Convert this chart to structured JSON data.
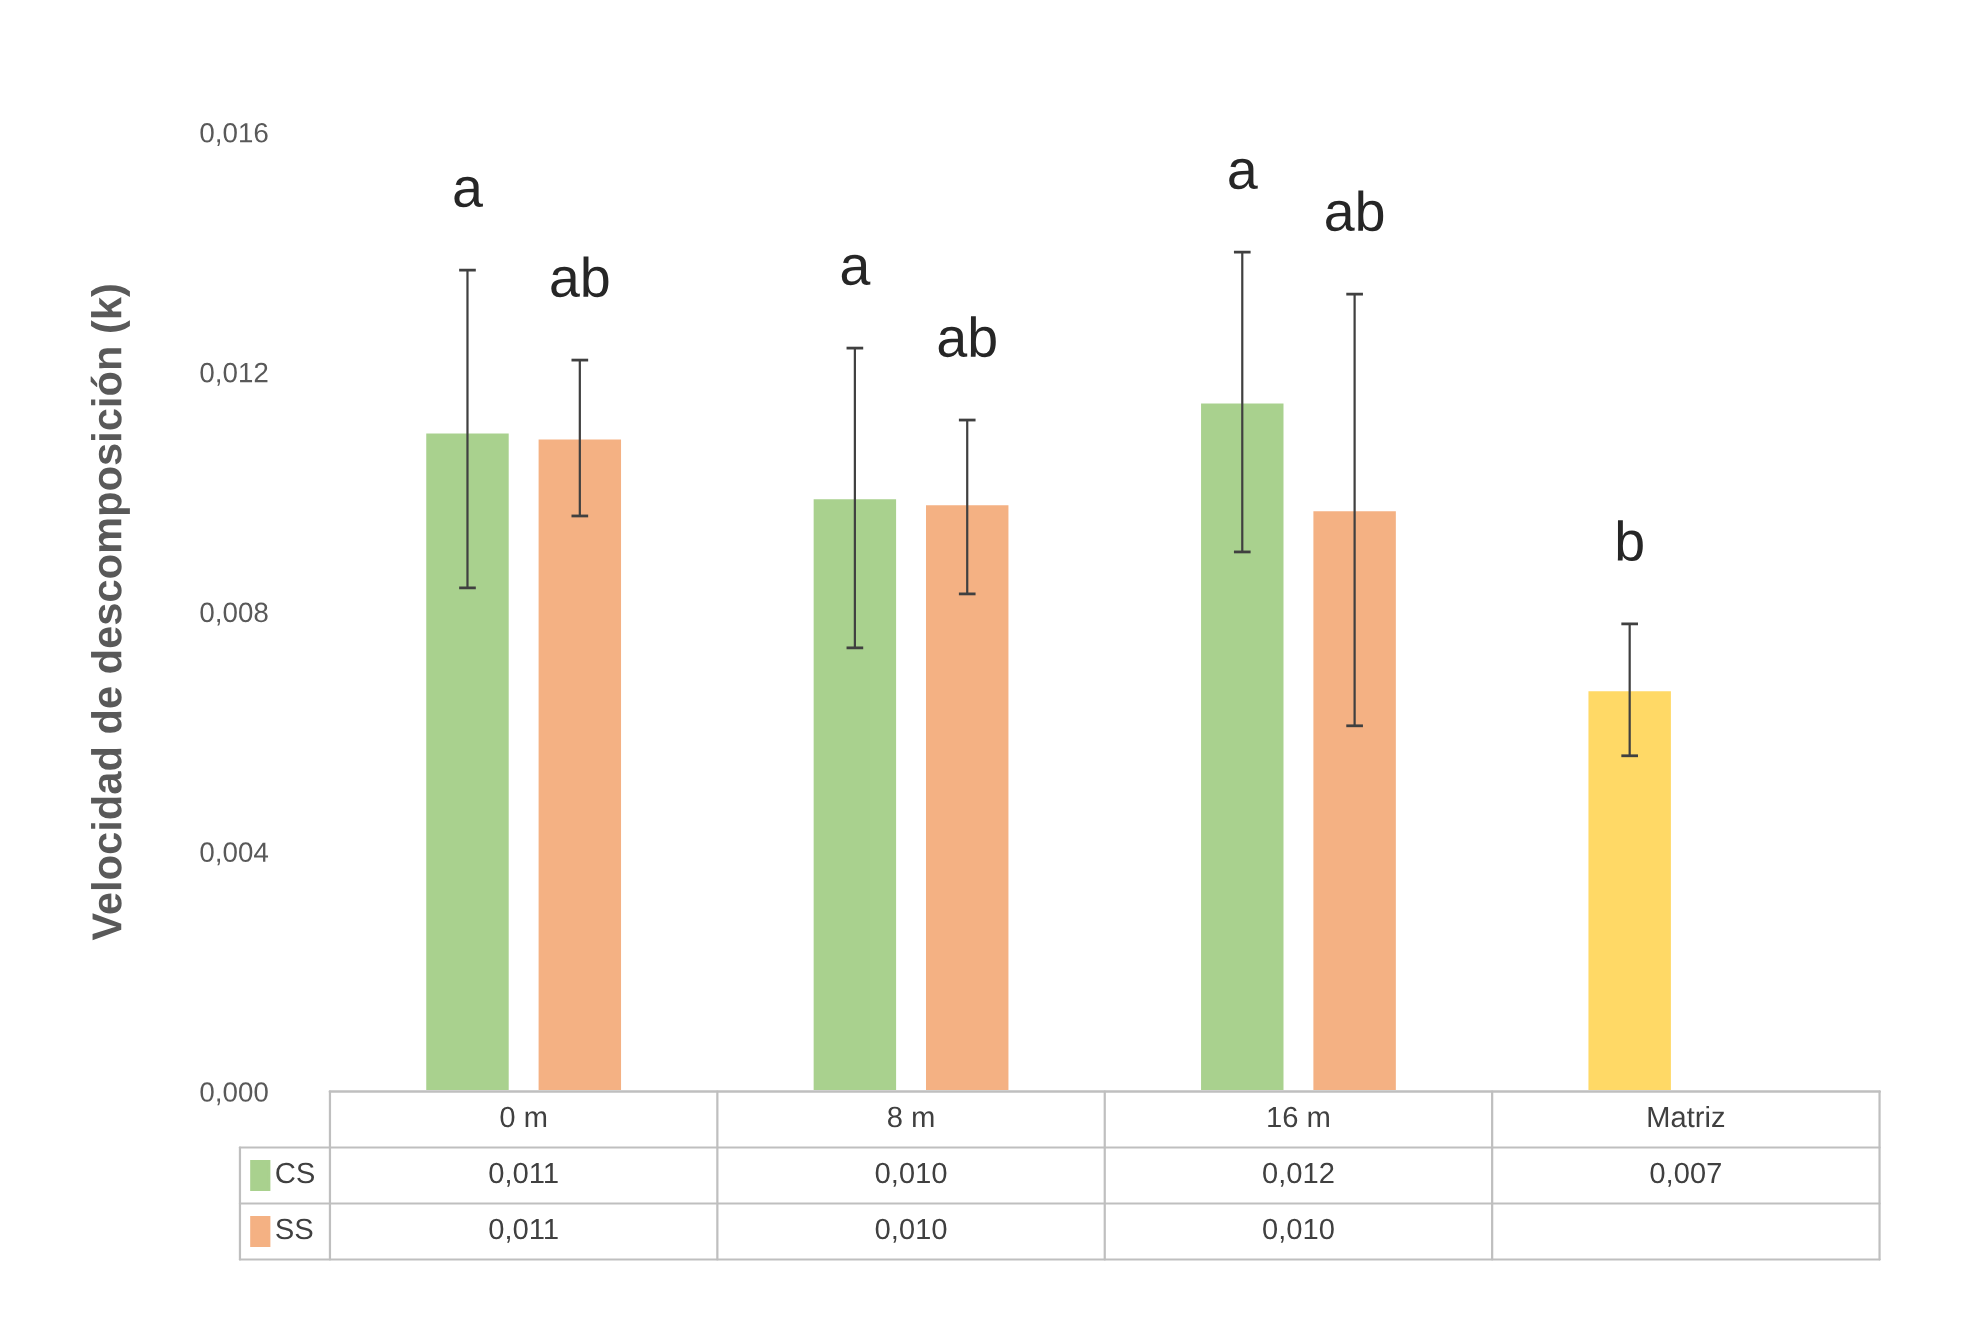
{
  "chart_data": {
    "type": "bar",
    "ylabel": "Velocidad de descomposición (k)",
    "categories": [
      "0 m",
      "8 m",
      "16 m",
      "Matriz"
    ],
    "series": [
      {
        "name": "CS",
        "color": "#a9d18e",
        "colors": [
          "#a9d18e",
          "#a9d18e",
          "#a9d18e",
          "#ffd966"
        ],
        "values": [
          0.011,
          0.0099,
          0.0115,
          0.0067
        ],
        "errors": [
          [
            0.0084,
            0.0137
          ],
          [
            0.0074,
            0.0124
          ],
          [
            0.009,
            0.014
          ],
          [
            0.0056,
            0.0078
          ]
        ],
        "value_labels": [
          "0,011",
          "0,010",
          "0,012",
          "0,007"
        ]
      },
      {
        "name": "SS",
        "color": "#f4b183",
        "values": [
          0.0109,
          0.0098,
          0.0097,
          null
        ],
        "errors": [
          [
            0.0096,
            0.0122
          ],
          [
            0.0083,
            0.0112
          ],
          [
            0.0061,
            0.0133
          ],
          null
        ],
        "value_labels": [
          "0,011",
          "0,010",
          "0,010",
          null
        ]
      }
    ],
    "ylim": [
      0,
      0.016
    ],
    "yticks": [
      {
        "value": 0,
        "label": "0,000"
      },
      {
        "value": 0.004,
        "label": "0,004"
      },
      {
        "value": 0.008,
        "label": "0,008"
      },
      {
        "value": 0.012,
        "label": "0,012"
      },
      {
        "value": 0.016,
        "label": "0,016"
      }
    ],
    "annotations": [
      "a",
      "ab",
      "a",
      "ab",
      "a",
      "ab",
      "b"
    ],
    "grid": false,
    "legend": "bottom left"
  }
}
